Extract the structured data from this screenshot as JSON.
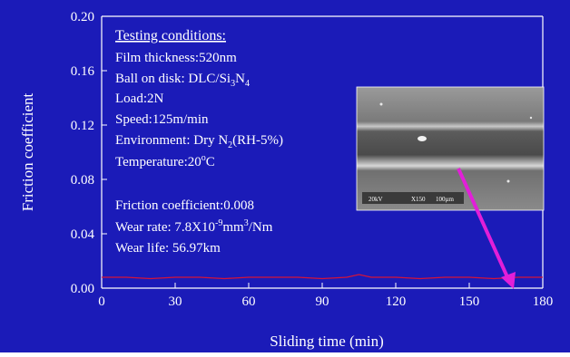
{
  "colors": {
    "background": "#1b1bb8",
    "axis": "#ffffff",
    "text": "#ffffff",
    "series": "#d4143a",
    "arrow": "#e21fd8",
    "inset_bg": "#8b8b8b"
  },
  "annotations": {
    "heading": "Testing conditions:",
    "film": "Film thickness:520nm",
    "ball_prefix": "Ball on disk: DLC/Si",
    "ball_sub1": "3",
    "ball_mid": "N",
    "ball_sub2": "4",
    "load": "Load:2N",
    "speed": "Speed:125m/min",
    "env_prefix": "Environment: Dry N",
    "env_sub": "2",
    "env_suffix": "(RH-5%)",
    "temp_prefix": "Temperature:20",
    "temp_sup": "o",
    "temp_suffix": "C",
    "cof": "Friction coefficient:0.008",
    "wear_prefix": "Wear rate: 7.8X10",
    "wear_sup1": "-9",
    "wear_mid": "mm",
    "wear_sup2": "3",
    "wear_suffix": "/Nm",
    "life": "Wear life: 56.97km"
  },
  "inset": {
    "icon": "sem-micrograph",
    "scale_text_left": "20kV",
    "scale_text_mid": "X150",
    "scale_text_right": "100µm"
  },
  "chart_data": {
    "type": "line",
    "xlabel": "Sliding time (min)",
    "ylabel": "Friction coefficient",
    "xlim": [
      0,
      180
    ],
    "ylim": [
      0,
      0.2
    ],
    "xticks": [
      0,
      30,
      60,
      90,
      120,
      150,
      180
    ],
    "yticks": [
      0.0,
      0.04,
      0.08,
      0.12,
      0.16,
      0.2
    ],
    "xtick_labels": [
      "0",
      "30",
      "60",
      "90",
      "120",
      "150",
      "180"
    ],
    "ytick_labels": [
      "0.00",
      "0.04",
      "0.08",
      "0.12",
      "0.16",
      "0.20"
    ],
    "grid": false,
    "series": [
      {
        "x": [
          0,
          10,
          20,
          30,
          40,
          50,
          60,
          70,
          80,
          90,
          100,
          105,
          110,
          120,
          130,
          140,
          150,
          160,
          170,
          180
        ],
        "y": [
          0.008,
          0.008,
          0.007,
          0.008,
          0.008,
          0.007,
          0.008,
          0.008,
          0.008,
          0.007,
          0.008,
          0.01,
          0.008,
          0.008,
          0.007,
          0.008,
          0.008,
          0.007,
          0.008,
          0.008
        ]
      }
    ]
  }
}
